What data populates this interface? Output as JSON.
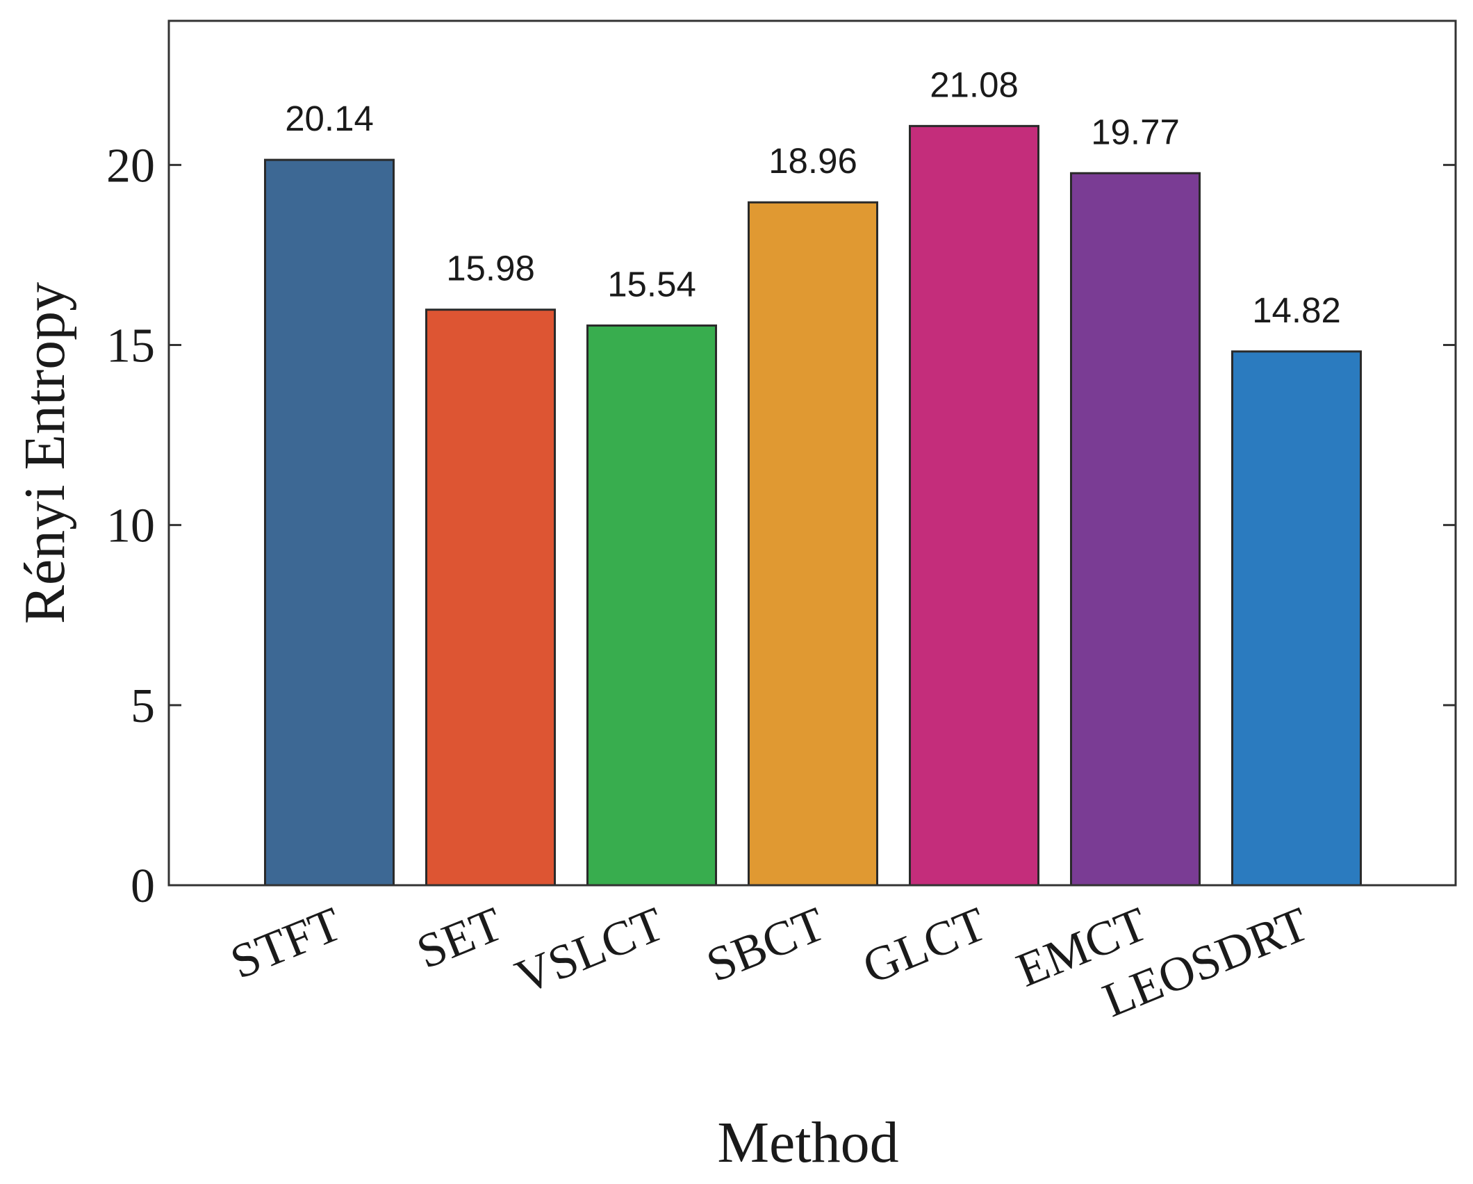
{
  "chart_data": {
    "type": "bar",
    "title": "",
    "xlabel": "Method",
    "ylabel": "Rényi Entropy",
    "categories": [
      "STFT",
      "SET",
      "VSLCT",
      "SBCT",
      "GLCT",
      "EMCT",
      "LEOSDRT"
    ],
    "values": [
      20.14,
      15.98,
      15.54,
      18.96,
      21.08,
      19.77,
      14.82
    ],
    "data_labels": [
      "20.14",
      "15.98",
      "15.54",
      "18.96",
      "21.08",
      "19.77",
      "14.82"
    ],
    "colors": [
      "#3d6894",
      "#dd5533",
      "#38ad4e",
      "#e09932",
      "#c42d7b",
      "#7a3c94",
      "#2b7bbf"
    ],
    "ylim": [
      0,
      24
    ],
    "yticks": [
      0,
      5,
      10,
      15,
      20
    ],
    "ytick_labels": [
      "0",
      "5",
      "10",
      "15",
      "20"
    ],
    "grid": false,
    "legend": "none"
  }
}
